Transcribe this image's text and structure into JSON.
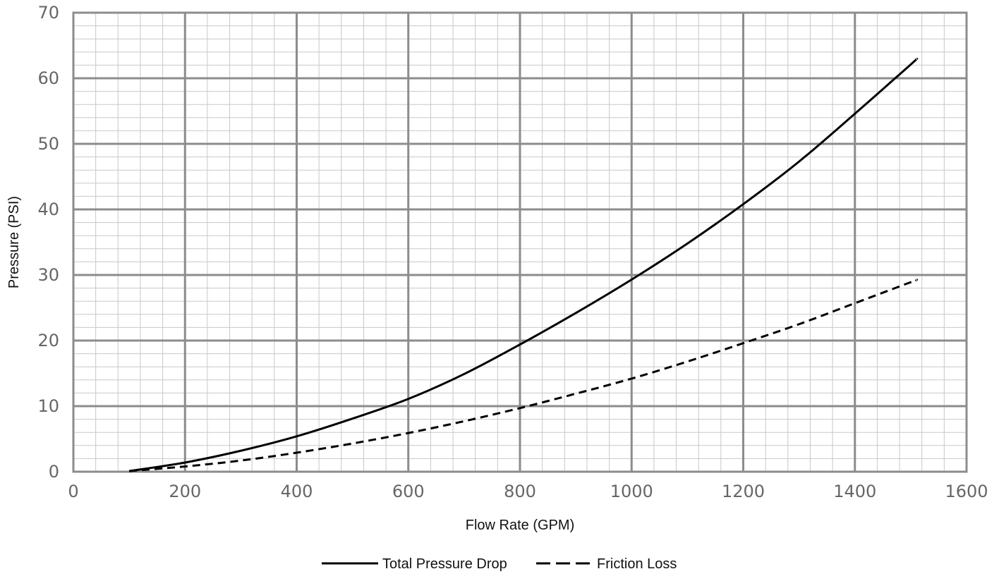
{
  "chart_data": {
    "type": "line",
    "title": "",
    "xlabel": "Flow Rate (GPM)",
    "ylabel": "Pressure (PSI)",
    "xlim": [
      0,
      1600
    ],
    "ylim": [
      0,
      70
    ],
    "x_ticks": [
      0,
      200,
      400,
      600,
      800,
      1000,
      1200,
      1400,
      1600
    ],
    "y_ticks": [
      0,
      10,
      20,
      30,
      40,
      50,
      60,
      70
    ],
    "grid": true,
    "legend_position": "bottom",
    "x": [
      100,
      200,
      300,
      400,
      500,
      600,
      700,
      800,
      900,
      1000,
      1100,
      1200,
      1300,
      1400,
      1500,
      1510
    ],
    "series": [
      {
        "name": "Total Pressure Drop",
        "style": "solid",
        "color": "#000000",
        "values": [
          0.1,
          1.4,
          3.2,
          5.4,
          8.1,
          11.1,
          14.9,
          19.4,
          24.2,
          29.3,
          34.8,
          40.8,
          47.3,
          54.6,
          62.1,
          62.9
        ]
      },
      {
        "name": "Friction Loss",
        "style": "dashed",
        "color": "#000000",
        "values": [
          0.1,
          0.8,
          1.7,
          2.9,
          4.3,
          5.9,
          7.7,
          9.7,
          11.9,
          14.2,
          16.8,
          19.6,
          22.5,
          25.7,
          28.9,
          29.2
        ]
      }
    ],
    "colors": {
      "major_grid": "#8c8c8c",
      "minor_grid": "#c8c8c8",
      "tick_text": "#666666",
      "line": "#000000"
    }
  }
}
